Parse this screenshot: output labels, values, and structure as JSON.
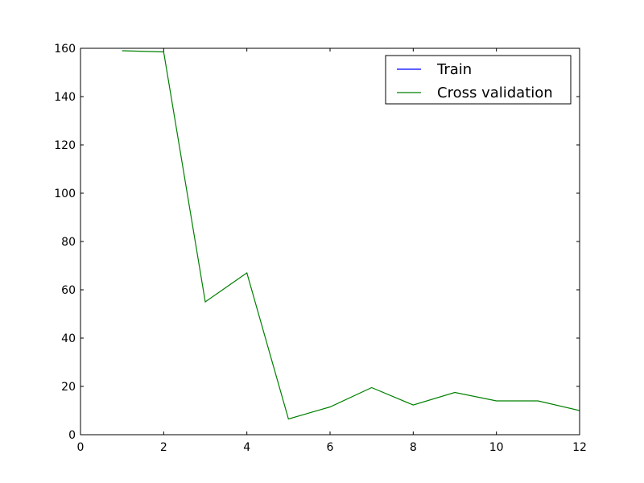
{
  "chart_data": {
    "type": "line",
    "title": "",
    "xlabel": "",
    "ylabel": "",
    "xlim": [
      0,
      12
    ],
    "ylim": [
      0,
      160
    ],
    "xticks": [
      0,
      2,
      4,
      6,
      8,
      10,
      12
    ],
    "yticks": [
      0,
      20,
      40,
      60,
      80,
      100,
      120,
      140,
      160
    ],
    "grid": false,
    "legend": "top-right",
    "series": [
      {
        "name": "Train",
        "color": "#0000ff",
        "x": [],
        "y": []
      },
      {
        "name": "Cross validation",
        "color": "#008000",
        "x": [
          1,
          2,
          3,
          4,
          5,
          6,
          7,
          8,
          9,
          10,
          11,
          12
        ],
        "y": [
          159,
          158.5,
          55,
          67,
          6.5,
          11.5,
          19.5,
          12.3,
          17.5,
          14,
          14,
          10
        ]
      }
    ]
  }
}
